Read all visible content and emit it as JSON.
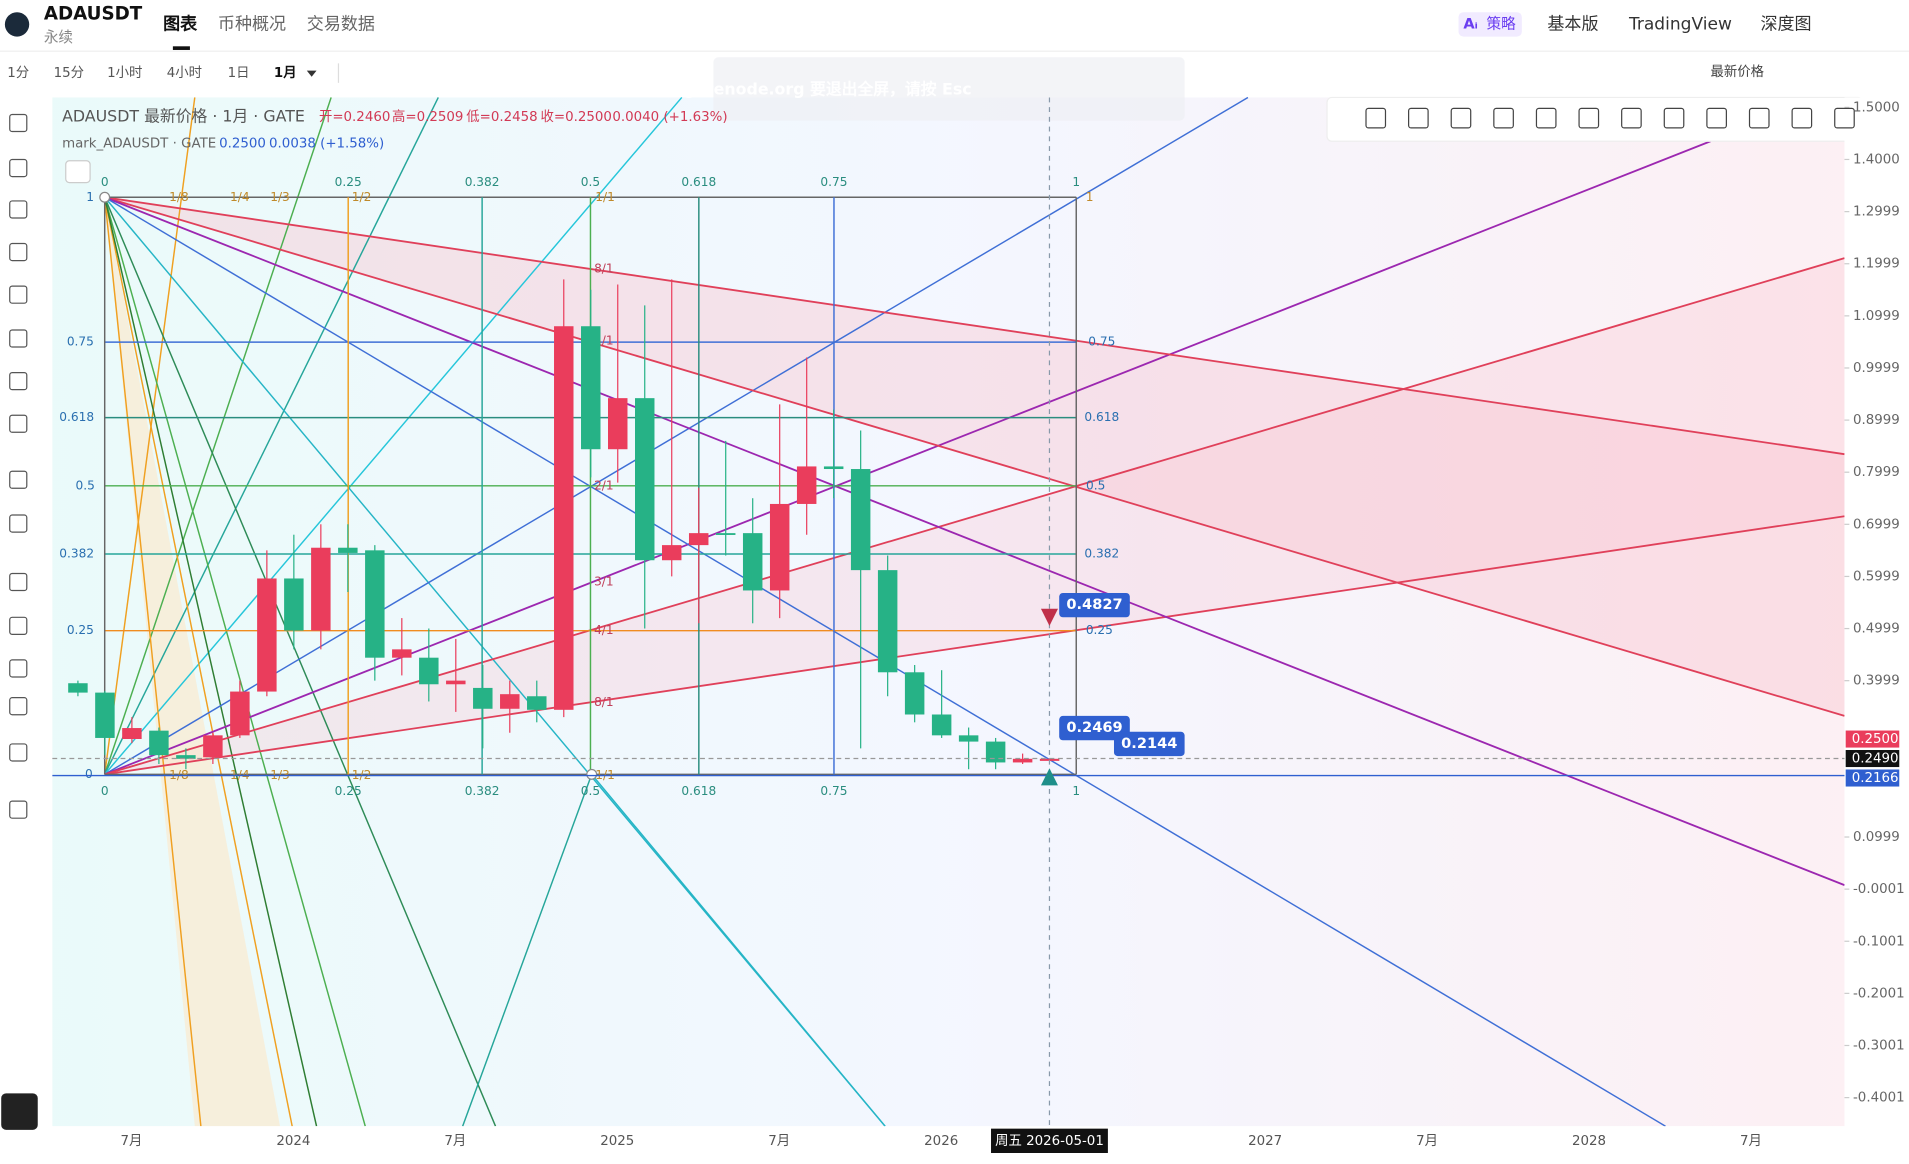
{
  "header": {
    "symbol": "ADAUSDT",
    "contract": "永续",
    "tabs": [
      "图表",
      "币种概况",
      "交易数据"
    ],
    "ai_badge": "Aᵢ",
    "strategy": "策略",
    "right_tabs": [
      "基本版",
      "TradingView",
      "深度图"
    ]
  },
  "toolbar": {
    "intervals": [
      "1分",
      "15分",
      "1小时",
      "4小时",
      "1日",
      "1月"
    ],
    "price_source": "最新价格",
    "watermark": "gatenode.org    要退出全屏，请按 Esc"
  },
  "legend": {
    "title": "ADAUSDT 最新价格 · 1月 · GATE",
    "open": "开=0.2460",
    "high": "高=0.2509",
    "low": "低=0.2458",
    "close": "收=0.2500",
    "change": "0.0040 (+1.63%)",
    "mark_title": "mark_ADAUSDT · GATE",
    "mark_price": "0.2500",
    "mark_change": "0.0038 (+1.58%)"
  },
  "chart_data": {
    "type": "candlestick",
    "up_color": "#ea3d5c",
    "down_color": "#26b286",
    "open": [
      0.395,
      0.377,
      0.288,
      0.304,
      0.257,
      0.253,
      0.295,
      0.379,
      0.596,
      0.496,
      0.655,
      0.65,
      0.444,
      0.444,
      0.393,
      0.386,
      0.346,
      0.37,
      0.344,
      1.08,
      0.844,
      0.942,
      0.631,
      0.66,
      0.683,
      0.683,
      0.573,
      0.739,
      0.811,
      0.806,
      0.612,
      0.416,
      0.335,
      0.295,
      0.283,
      0.243,
      0.246
    ],
    "high": [
      0.4,
      0.38,
      0.33,
      0.31,
      0.27,
      0.3,
      0.4,
      0.65,
      0.68,
      0.7,
      0.7,
      0.66,
      0.52,
      0.5,
      0.48,
      0.43,
      0.4,
      0.4,
      1.17,
      1.15,
      1.16,
      1.12,
      1.17,
      0.77,
      0.86,
      0.75,
      0.93,
      1.02,
      0.92,
      0.88,
      0.64,
      0.43,
      0.42,
      0.31,
      0.29,
      0.26,
      0.2509
    ],
    "low": [
      0.37,
      0.257,
      0.28,
      0.24,
      0.23,
      0.24,
      0.29,
      0.37,
      0.46,
      0.46,
      0.57,
      0.4,
      0.41,
      0.36,
      0.34,
      0.27,
      0.3,
      0.32,
      0.33,
      0.79,
      0.78,
      0.5,
      0.6,
      0.51,
      0.64,
      0.51,
      0.52,
      0.68,
      0.75,
      0.27,
      0.37,
      0.32,
      0.29,
      0.23,
      0.23,
      0.24,
      0.2458
    ],
    "close": [
      0.377,
      0.29,
      0.309,
      0.257,
      0.25,
      0.295,
      0.379,
      0.596,
      0.496,
      0.655,
      0.645,
      0.444,
      0.46,
      0.393,
      0.4,
      0.346,
      0.374,
      0.344,
      1.08,
      0.844,
      0.942,
      0.631,
      0.66,
      0.683,
      0.68,
      0.573,
      0.739,
      0.811,
      0.806,
      0.612,
      0.416,
      0.335,
      0.295,
      0.283,
      0.243,
      0.25,
      0.25
    ],
    "ylim": [
      -0.455,
      1.519
    ],
    "yticks": [
      {
        "value": 1.5,
        "label": "1.5000"
      },
      {
        "value": 1.4,
        "label": "1.4000"
      },
      1.2999,
      1.1999,
      1.0999,
      0.9999,
      0.8999,
      0.7999,
      0.6999,
      0.5999,
      0.4999,
      0.3999,
      0.0999,
      -0.0001,
      -0.1001,
      -0.2001,
      -0.3001,
      -0.4001
    ],
    "time_labels": [
      "7月",
      "2024",
      "7月",
      "2025",
      "7月",
      "2026",
      "2027",
      "7月",
      "2028",
      "7月"
    ],
    "price_badges": [
      "0.2500",
      "0.2490",
      "0.2166"
    ],
    "callouts": [
      "0.4827",
      "0.2469",
      "0.2144"
    ],
    "crosshair_date": "周五 2026-05-01"
  },
  "gann": {
    "top": [
      "0",
      "0.25",
      "0.382",
      "0.5",
      "0.618",
      "0.75",
      "1"
    ],
    "top_fans": [
      "1/8",
      "1/4",
      "1/3",
      "1/2",
      "1/1",
      "1"
    ],
    "bottom": [
      "0",
      "0.25",
      "0.382",
      "0.5",
      "0.618",
      "0.75",
      "1"
    ],
    "bottom_fans": [
      "1/8",
      "1/4",
      "1/3",
      "1/2",
      "1/1"
    ],
    "left": [
      "1",
      "0.75",
      "0.618",
      "0.5",
      "0.382",
      "0.25",
      "0"
    ],
    "right": [
      "0.75",
      "0.618",
      "0.5",
      "0.382",
      "0.25"
    ],
    "ratios": [
      "8/1",
      "4/1",
      "2/1",
      "3/1",
      "4/1",
      "8/1"
    ]
  }
}
